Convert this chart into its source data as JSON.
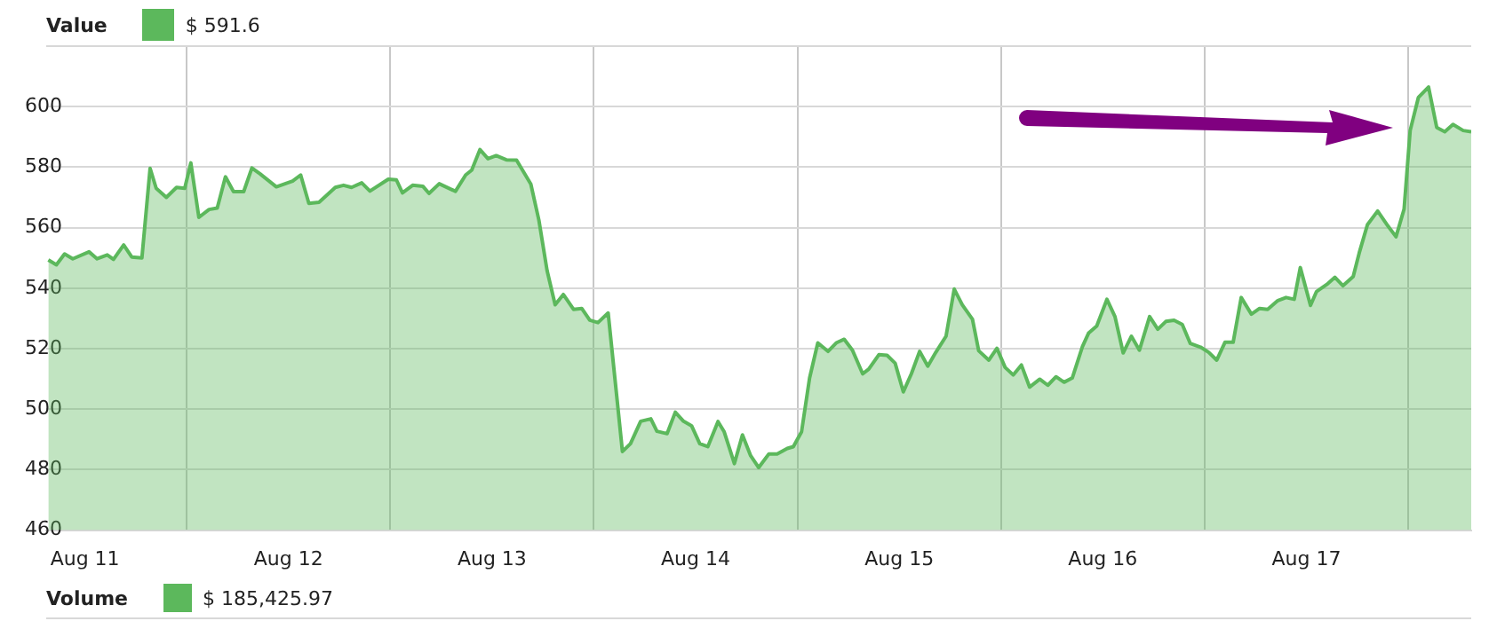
{
  "chart_data": {
    "type": "area",
    "legend": "top left",
    "grid": true,
    "marker": "none",
    "line_style": "solid",
    "annotations": [
      "$ 591.6",
      "Volume",
      "$ 185,425.97"
    ],
    "xlim": [
      "--08-11T07:26",
      "--08-18T07:26"
    ],
    "xticks": [
      {
        "value": "--08-11T12:00",
        "label": "Aug 11"
      },
      {
        "value": "--08-12",
        "label": null
      },
      {
        "value": "--08-12T12:00",
        "label": "Aug 12"
      },
      {
        "value": "--08-13",
        "label": null
      },
      {
        "value": "--08-13T12:00",
        "label": "Aug 13"
      },
      {
        "value": "--08-14",
        "label": null
      },
      {
        "value": "--08-14T12:00",
        "label": "Aug 14"
      },
      {
        "value": "--08-15",
        "label": null
      },
      {
        "value": "--08-15T12:00",
        "label": "Aug 15"
      },
      {
        "value": "--08-16",
        "label": null
      },
      {
        "value": "--08-16T12:00",
        "label": "Aug 16"
      },
      {
        "value": "--08-17",
        "label": null
      },
      {
        "value": "--08-17T12:00",
        "label": "Aug 17"
      },
      {
        "value": "--08-18",
        "label": null
      }
    ],
    "ylim": [
      460,
      620
    ],
    "yticks": [
      460,
      480,
      500,
      520,
      540,
      560,
      580,
      600,
      {
        "value": 620,
        "label": null
      }
    ],
    "series": [
      {
        "name": "Value",
        "color": "#5cb85c",
        "x": [
          "--08-11T07:41",
          "--08-11T08:38",
          "--08-11T09:36",
          "--08-11T10:34",
          "--08-11T12:29",
          "--08-11T13:26",
          "--08-11T14:38",
          "--08-11T15:22",
          "--08-11T16:34",
          "--08-11T17:31",
          "--08-11T18:43",
          "--08-11T19:41",
          "--08-11T20:24",
          "--08-11T21:36",
          "--08-11T22:48",
          "--08-11T23:46",
          "--08-12T00:29",
          "--08-12T01:26",
          "--08-12T02:38",
          "--08-12T03:36",
          "--08-12T04:34",
          "--08-12T05:31",
          "--08-12T06:43",
          "--08-12T07:41",
          "--08-12T08:38",
          "--08-12T10:34",
          "--08-12T12:29",
          "--08-12T13:26",
          "--08-12T14:24",
          "--08-12T15:36",
          "--08-12T17:31",
          "--08-12T18:29",
          "--08-12T19:26",
          "--08-12T20:38",
          "--08-12T21:36",
          "--08-12T23:46",
          "--08-13T00:43",
          "--08-13T01:26",
          "--08-13T02:38",
          "--08-13T03:50",
          "--08-13T04:34",
          "--08-13T05:46",
          "--08-13T07:41",
          "--08-13T08:53",
          "--08-13T09:36",
          "--08-13T10:34",
          "--08-13T11:31",
          "--08-13T12:29",
          "--08-13T13:41",
          "--08-13T14:53",
          "--08-13T16:34",
          "--08-13T17:31",
          "--08-13T18:29",
          "--08-13T19:26",
          "--08-13T20:24",
          "--08-13T21:36",
          "--08-13T22:34",
          "--08-13T23:31",
          "--08-14T00:29",
          "--08-14T01:41",
          "--08-14T03:22",
          "--08-14T04:19",
          "--08-14T05:31",
          "--08-14T06:43",
          "--08-14T07:26",
          "--08-14T08:38",
          "--08-14T09:36",
          "--08-14T10:34",
          "--08-14T11:31",
          "--08-14T12:29",
          "--08-14T13:26",
          "--08-14T14:38",
          "--08-14T15:22",
          "--08-14T16:34",
          "--08-14T17:31",
          "--08-14T18:29",
          "--08-14T19:26",
          "--08-14T20:38",
          "--08-14T21:36",
          "--08-14T22:48",
          "--08-14T23:31",
          "--08-15T00:29",
          "--08-15T01:26",
          "--08-15T02:24",
          "--08-15T03:36",
          "--08-15T04:34",
          "--08-15T05:31",
          "--08-15T06:29",
          "--08-15T07:41",
          "--08-15T08:24",
          "--08-15T09:36",
          "--08-15T10:34",
          "--08-15T11:31",
          "--08-15T12:29",
          "--08-15T13:26",
          "--08-15T14:24",
          "--08-15T15:22",
          "--08-15T16:19",
          "--08-15T17:31",
          "--08-15T18:29",
          "--08-15T19:26",
          "--08-15T20:38",
          "--08-15T21:22",
          "--08-15T22:34",
          "--08-15T23:31",
          "--08-16T00:29",
          "--08-16T01:26",
          "--08-16T02:24",
          "--08-16T03:22",
          "--08-16T04:34",
          "--08-16T05:31",
          "--08-16T06:29",
          "--08-16T07:26",
          "--08-16T08:24",
          "--08-16T09:36",
          "--08-16T10:19",
          "--08-16T11:17",
          "--08-16T12:29",
          "--08-16T13:26",
          "--08-16T14:24",
          "--08-16T15:22",
          "--08-16T16:19",
          "--08-16T17:31",
          "--08-16T18:29",
          "--08-16T19:26",
          "--08-16T20:24",
          "--08-16T21:22",
          "--08-16T22:19",
          "--08-16T23:31",
          "--08-17T00:29",
          "--08-17T01:26",
          "--08-17T02:24",
          "--08-17T03:22",
          "--08-17T04:19",
          "--08-17T05:31",
          "--08-17T06:29",
          "--08-17T07:26",
          "--08-17T08:38",
          "--08-17T09:36",
          "--08-17T10:34",
          "--08-17T11:17",
          "--08-17T12:29",
          "--08-17T13:12",
          "--08-17T14:24",
          "--08-17T15:22",
          "--08-17T16:19",
          "--08-17T17:31",
          "--08-17T18:14",
          "--08-17T19:12",
          "--08-17T20:24",
          "--08-17T21:36",
          "--08-17T22:34",
          "--08-17T23:31",
          "--08-18T00:14",
          "--08-18T01:12",
          "--08-18T02:24",
          "--08-18T03:22",
          "--08-18T04:19",
          "--08-18T05:17",
          "--08-18T06:29",
          "--08-18T07:26"
        ],
        "values": [
          549.3,
          547.7,
          551.3,
          549.7,
          552,
          549.7,
          551,
          549.5,
          554.3,
          550.3,
          550,
          579.6,
          573,
          570,
          573.3,
          573,
          581.4,
          563.4,
          566,
          566.5,
          576.8,
          571.9,
          571.9,
          579.7,
          577.8,
          573.5,
          575.4,
          577.4,
          568,
          568.4,
          573.3,
          574,
          573.3,
          574.8,
          572.1,
          576,
          575.8,
          571.5,
          574,
          573.7,
          571.3,
          574.5,
          572,
          577.4,
          579,
          585.8,
          582.8,
          583.8,
          582.4,
          582.3,
          574.4,
          562.5,
          545.8,
          534.5,
          537.9,
          533,
          533.3,
          529.4,
          528.6,
          531.8,
          486,
          488.6,
          496,
          496.8,
          492.7,
          491.9,
          499,
          496,
          494.5,
          488.6,
          487.6,
          495.9,
          492.5,
          482,
          491.5,
          484.6,
          480.7,
          485.2,
          485.2,
          487,
          487.6,
          492.5,
          510.3,
          521.9,
          519.1,
          521.9,
          523.1,
          519.5,
          511.7,
          513.2,
          518,
          517.8,
          515.2,
          505.7,
          511.7,
          519.1,
          514.2,
          518.8,
          524.1,
          539.7,
          534.5,
          529.7,
          519.3,
          516.2,
          520.1,
          513.8,
          511.3,
          514.6,
          507.3,
          509.9,
          507.9,
          510.7,
          508.9,
          510.3,
          520.7,
          525.1,
          527.5,
          536.3,
          530.6,
          518.6,
          524.1,
          519.5,
          530.6,
          526.4,
          529,
          529.4,
          528,
          521.7,
          520.5,
          518.8,
          516.2,
          522.1,
          522.1,
          536.9,
          531.4,
          533.3,
          533,
          535.9,
          536.9,
          536.3,
          546.8,
          534.3,
          538.9,
          541.2,
          543.6,
          540.8,
          543.8,
          551.7,
          561,
          565.5,
          560.6,
          557,
          566.1,
          592.1,
          603,
          606.5,
          593.1,
          591.7,
          594.1,
          592.1,
          591.7
        ]
      }
    ]
  }
}
